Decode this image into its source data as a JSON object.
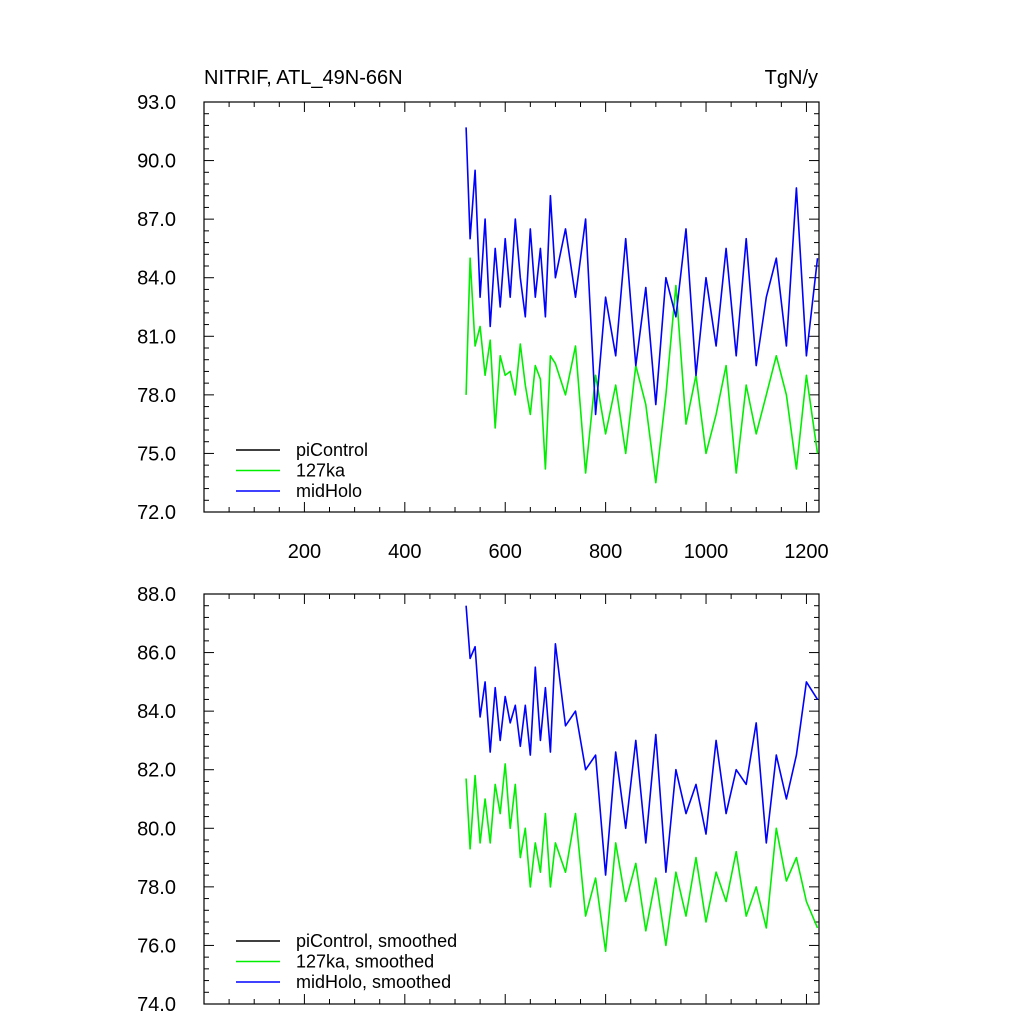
{
  "chart_data": [
    {
      "type": "line",
      "title": "NITRIF, ATL_49N-66N",
      "units": "TgN/y",
      "xlim": [
        0,
        1225
      ],
      "ylim": [
        72,
        93
      ],
      "x_ticks": [
        200,
        400,
        600,
        800,
        1000,
        1200
      ],
      "x_tick_labels": [
        "200",
        "400",
        "600",
        "800",
        "1000",
        "1200"
      ],
      "y_ticks": [
        72,
        75,
        78,
        81,
        84,
        87,
        90,
        93
      ],
      "y_tick_labels": [
        "72.0",
        "75.0",
        "78.0",
        "81.0",
        "84.0",
        "87.0",
        "90.0",
        "93.0"
      ],
      "legend_position": "bottom-left",
      "series": [
        {
          "name": "piControl",
          "color": "#000000",
          "x": [],
          "y": []
        },
        {
          "name": "127ka",
          "color": "#00ee00",
          "x": [
            522,
            530,
            540,
            550,
            560,
            570,
            580,
            590,
            600,
            610,
            620,
            630,
            640,
            650,
            660,
            670,
            680,
            690,
            700,
            720,
            740,
            760,
            780,
            800,
            820,
            840,
            860,
            880,
            900,
            920,
            940,
            960,
            980,
            1000,
            1020,
            1040,
            1060,
            1080,
            1100,
            1120,
            1140,
            1160,
            1180,
            1200,
            1222
          ],
          "y": [
            78.0,
            85.0,
            80.5,
            81.5,
            79.0,
            80.8,
            76.3,
            80.0,
            79.0,
            79.2,
            78.0,
            80.6,
            78.5,
            77.0,
            79.5,
            78.8,
            74.2,
            80.0,
            79.6,
            78.0,
            80.5,
            74.0,
            79.0,
            76.0,
            78.5,
            75.0,
            79.5,
            77.5,
            73.5,
            78.0,
            83.6,
            76.5,
            79.0,
            75.0,
            77.0,
            79.5,
            74.0,
            78.5,
            76.0,
            78.0,
            80.0,
            78.0,
            74.2,
            79.0,
            75.0
          ]
        },
        {
          "name": "midHolo",
          "color": "#0000ff",
          "x": [
            522,
            530,
            540,
            550,
            560,
            570,
            580,
            590,
            600,
            610,
            620,
            630,
            640,
            650,
            660,
            670,
            680,
            690,
            700,
            720,
            740,
            760,
            780,
            800,
            820,
            840,
            860,
            880,
            900,
            920,
            940,
            960,
            980,
            1000,
            1020,
            1040,
            1060,
            1080,
            1100,
            1120,
            1140,
            1160,
            1180,
            1200,
            1222
          ],
          "y": [
            91.7,
            86.0,
            89.5,
            83.0,
            87.0,
            81.5,
            85.5,
            82.5,
            86.0,
            83.0,
            87.0,
            84.0,
            82.0,
            86.5,
            83.0,
            85.5,
            82.0,
            88.2,
            84.0,
            86.5,
            83.0,
            87.0,
            77.0,
            83.0,
            80.0,
            86.0,
            79.5,
            83.5,
            77.5,
            84.0,
            82.0,
            86.5,
            79.0,
            84.0,
            80.5,
            85.5,
            80.0,
            86.0,
            79.5,
            83.0,
            85.0,
            80.5,
            88.6,
            80.0,
            85.0
          ]
        }
      ]
    },
    {
      "type": "line",
      "xlim": [
        0,
        1225
      ],
      "ylim": [
        74,
        88
      ],
      "y_ticks": [
        74,
        76,
        78,
        80,
        82,
        84,
        86,
        88
      ],
      "y_tick_labels": [
        "74.0",
        "76.0",
        "78.0",
        "80.0",
        "82.0",
        "84.0",
        "86.0",
        "88.0"
      ],
      "legend_position": "bottom-left",
      "series": [
        {
          "name": "piControl, smoothed",
          "color": "#000000",
          "x": [],
          "y": []
        },
        {
          "name": "127ka, smoothed",
          "color": "#00ee00",
          "x": [
            522,
            530,
            540,
            550,
            560,
            570,
            580,
            590,
            600,
            610,
            620,
            630,
            640,
            650,
            660,
            670,
            680,
            690,
            700,
            720,
            740,
            760,
            780,
            800,
            820,
            840,
            860,
            880,
            900,
            920,
            940,
            960,
            980,
            1000,
            1020,
            1040,
            1060,
            1080,
            1100,
            1120,
            1140,
            1160,
            1180,
            1200,
            1222
          ],
          "y": [
            81.7,
            79.3,
            81.8,
            79.5,
            81.0,
            79.5,
            81.5,
            80.5,
            82.2,
            80.0,
            81.5,
            79.0,
            80.0,
            78.0,
            79.5,
            78.5,
            80.5,
            78.0,
            79.5,
            78.5,
            80.5,
            77.0,
            78.3,
            75.8,
            79.5,
            77.5,
            78.8,
            76.5,
            78.3,
            76.0,
            78.5,
            77.0,
            79.0,
            76.8,
            78.5,
            77.5,
            79.2,
            77.0,
            78.0,
            76.6,
            80.0,
            78.2,
            79.0,
            77.5,
            76.6
          ]
        },
        {
          "name": "midHolo, smoothed",
          "color": "#0000ff",
          "x": [
            522,
            530,
            540,
            550,
            560,
            570,
            580,
            590,
            600,
            610,
            620,
            630,
            640,
            650,
            660,
            670,
            680,
            690,
            700,
            720,
            740,
            760,
            780,
            800,
            820,
            840,
            860,
            880,
            900,
            920,
            940,
            960,
            980,
            1000,
            1020,
            1040,
            1060,
            1080,
            1100,
            1120,
            1140,
            1160,
            1180,
            1200,
            1222
          ],
          "y": [
            87.6,
            85.8,
            86.2,
            83.8,
            85.0,
            82.6,
            84.8,
            83.0,
            84.5,
            83.6,
            84.2,
            82.8,
            84.2,
            82.5,
            85.5,
            83.0,
            84.8,
            82.6,
            86.3,
            83.5,
            84.0,
            82.0,
            82.5,
            78.4,
            82.6,
            80.0,
            83.0,
            79.5,
            83.2,
            78.5,
            82.0,
            80.5,
            81.5,
            79.8,
            83.0,
            80.5,
            82.0,
            81.5,
            83.6,
            79.5,
            82.5,
            81.0,
            82.5,
            85.0,
            84.4
          ]
        }
      ]
    }
  ]
}
